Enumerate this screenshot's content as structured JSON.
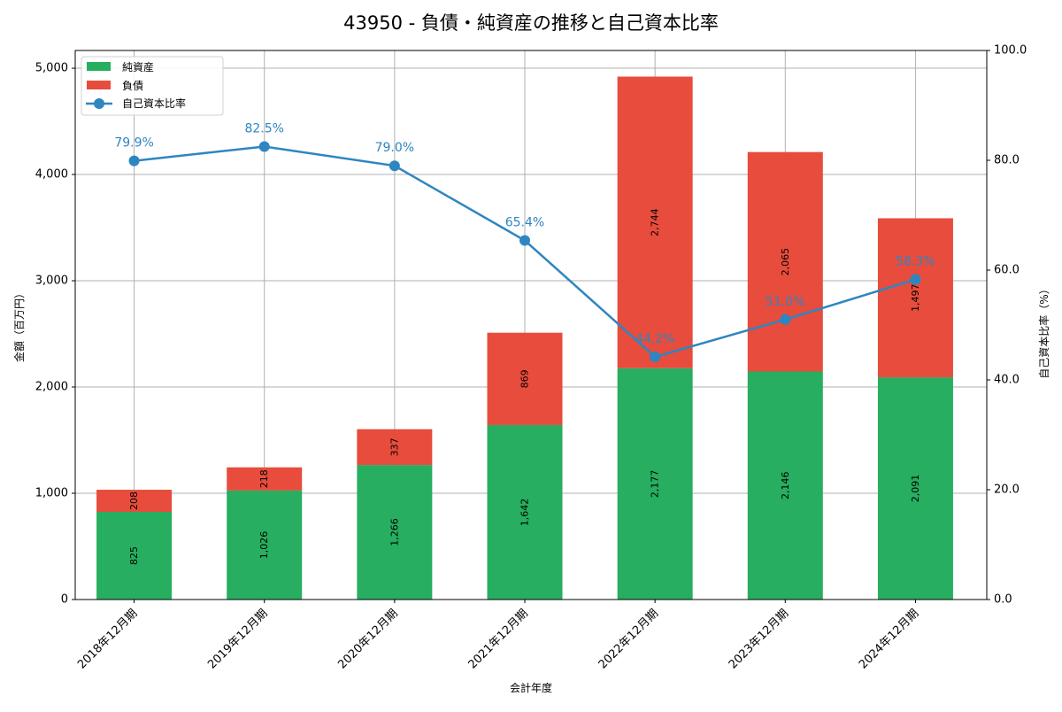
{
  "chart_data": {
    "type": "bar",
    "title": "43950 - 負債・純資産の推移と自己資本比率",
    "xlabel": "会計年度",
    "ylabel": "金額（百万円）",
    "ylabel_right": "自己資本比率（%）",
    "ylim": [
      0,
      5167
    ],
    "ylim_right": [
      0,
      100
    ],
    "yticks": [
      0,
      1000,
      2000,
      3000,
      4000,
      5000
    ],
    "ytick_labels": [
      "0",
      "1,000",
      "2,000",
      "3,000",
      "4,000",
      "5,000"
    ],
    "yticks_right": [
      0,
      20,
      40,
      60,
      80,
      100
    ],
    "ytick_labels_right": [
      "0.0",
      "20.0",
      "40.0",
      "60.0",
      "80.0",
      "100.0"
    ],
    "grid": true,
    "legend_position": "upper left",
    "categories": [
      "2018年12月期",
      "2019年12月期",
      "2020年12月期",
      "2021年12月期",
      "2022年12月期",
      "2023年12月期",
      "2024年12月期"
    ],
    "series": [
      {
        "name": "純資産",
        "type": "bar",
        "stacked": true,
        "color": "#27ae60",
        "axis": "left",
        "values": [
          825,
          1026,
          1266,
          1642,
          2177,
          2146,
          2091
        ],
        "labels": [
          "825",
          "1,026",
          "1,266",
          "1,642",
          "2,177",
          "2,146",
          "2,091"
        ]
      },
      {
        "name": "負債",
        "type": "bar",
        "stacked": true,
        "color": "#e74c3c",
        "axis": "left",
        "values": [
          208,
          218,
          337,
          869,
          2744,
          2065,
          1497
        ],
        "labels": [
          "208",
          "218",
          "337",
          "869",
          "2,744",
          "2,065",
          "1,497"
        ]
      },
      {
        "name": "自己資本比率",
        "type": "line",
        "color": "#2e86c1",
        "axis": "right",
        "marker": "o",
        "values": [
          79.9,
          82.5,
          79.0,
          65.4,
          44.2,
          51.0,
          58.3
        ],
        "labels": [
          "79.9%",
          "82.5%",
          "79.0%",
          "65.4%",
          "44.2%",
          "51.0%",
          "58.3%"
        ]
      }
    ]
  }
}
